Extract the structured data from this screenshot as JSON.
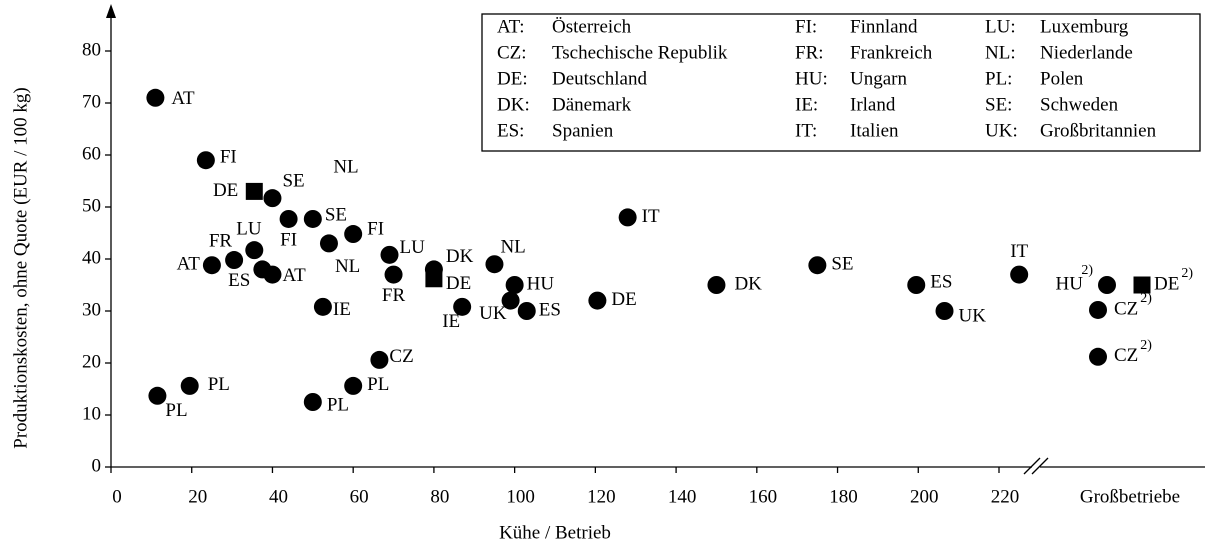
{
  "chart_data": {
    "type": "scatter",
    "x_label": "Kühe / Betrieb",
    "y_label": "Produktionskosten, ohne Quote  (EUR / 100 kg)",
    "xlim": [
      0,
      220
    ],
    "ylim": [
      0,
      80
    ],
    "xticks": [
      0,
      20,
      40,
      60,
      80,
      100,
      120,
      140,
      160,
      180,
      200,
      220
    ],
    "yticks": [
      0,
      10,
      20,
      30,
      40,
      50,
      60,
      70,
      80
    ],
    "large_farms_label": "Großbetriebe",
    "color": "#000000",
    "annotations": [
      "NL"
    ],
    "legend": [
      [
        "AT:",
        "Österreich"
      ],
      [
        "CZ:",
        "Tschechische Republik"
      ],
      [
        "DE:",
        "Deutschland"
      ],
      [
        "DK:",
        "Dänemark"
      ],
      [
        "ES:",
        "Spanien"
      ],
      [
        "FI:",
        "Finnland"
      ],
      [
        "FR:",
        "Frankreich"
      ],
      [
        "HU:",
        "Ungarn"
      ],
      [
        "IE:",
        "Irland"
      ],
      [
        "IT:",
        "Italien"
      ],
      [
        "LU:",
        "Luxemburg"
      ],
      [
        "NL:",
        "Niederlande"
      ],
      [
        "PL:",
        "Polen"
      ],
      [
        "SE:",
        "Schweden"
      ],
      [
        "UK:",
        "Großbritannien"
      ]
    ],
    "points": [
      {
        "x": 11,
        "y": 71,
        "label": "AT"
      },
      {
        "x": 23.5,
        "y": 59,
        "label": "FI"
      },
      {
        "x": 40,
        "y": 51.7,
        "label": "SE"
      },
      {
        "x": 44,
        "y": 47.7,
        "label": "FI"
      },
      {
        "x": 50,
        "y": 47.7,
        "label": "SE"
      },
      {
        "x": 60,
        "y": 44.8,
        "label": "FI"
      },
      {
        "x": 54,
        "y": 43,
        "label": "NL"
      },
      {
        "x": 35.5,
        "y": 41.7,
        "label": "LU"
      },
      {
        "x": 30.5,
        "y": 39.8,
        "label": "FR"
      },
      {
        "x": 25,
        "y": 38.8,
        "label": "AT"
      },
      {
        "x": 37.5,
        "y": 38,
        "label": "ES"
      },
      {
        "x": 40,
        "y": 37,
        "label": "AT"
      },
      {
        "x": 52.5,
        "y": 30.8,
        "label": "IE"
      },
      {
        "x": 69,
        "y": 40.8,
        "label": "LU"
      },
      {
        "x": 70,
        "y": 37,
        "label": "FR"
      },
      {
        "x": 80,
        "y": 38,
        "label": "DK"
      },
      {
        "x": 87,
        "y": 30.8,
        "label": "IE"
      },
      {
        "x": 95,
        "y": 39,
        "label": "NL"
      },
      {
        "x": 100,
        "y": 35,
        "label": "HU"
      },
      {
        "x": 99,
        "y": 32,
        "label": "UK"
      },
      {
        "x": 103,
        "y": 30,
        "label": "ES"
      },
      {
        "x": 120.5,
        "y": 32,
        "label": "DE"
      },
      {
        "x": 128,
        "y": 48,
        "label": "IT"
      },
      {
        "x": 150,
        "y": 35,
        "label": "DK"
      },
      {
        "x": 175,
        "y": 38.8,
        "label": "SE"
      },
      {
        "x": 199.5,
        "y": 35,
        "label": "ES"
      },
      {
        "x": 206.5,
        "y": 30,
        "label": "UK"
      },
      {
        "x": 225,
        "y": 37,
        "label": "IT"
      },
      {
        "x": 11.5,
        "y": 13.7,
        "label": "PL"
      },
      {
        "x": 19.5,
        "y": 15.6,
        "label": "PL"
      },
      {
        "x": 50,
        "y": 12.5,
        "label": "PL"
      },
      {
        "x": 60,
        "y": 15.6,
        "label": "PL"
      },
      {
        "x": 66.5,
        "y": 20.6,
        "label": "CZ"
      }
    ],
    "squares": [
      {
        "x": 35.5,
        "y": 53,
        "label": "DE"
      },
      {
        "x": 80,
        "y": 36.2,
        "label": "DE"
      }
    ],
    "large_farms": [
      {
        "y": 35,
        "label": "HU",
        "note": "2)",
        "marker": "circle"
      },
      {
        "y": 35,
        "label": "DE",
        "note": "2)",
        "marker": "square"
      },
      {
        "y": 30.2,
        "label": "CZ",
        "note": "2)",
        "marker": "circle"
      },
      {
        "y": 21.2,
        "label": "CZ",
        "note": "2)",
        "marker": "circle"
      }
    ]
  }
}
